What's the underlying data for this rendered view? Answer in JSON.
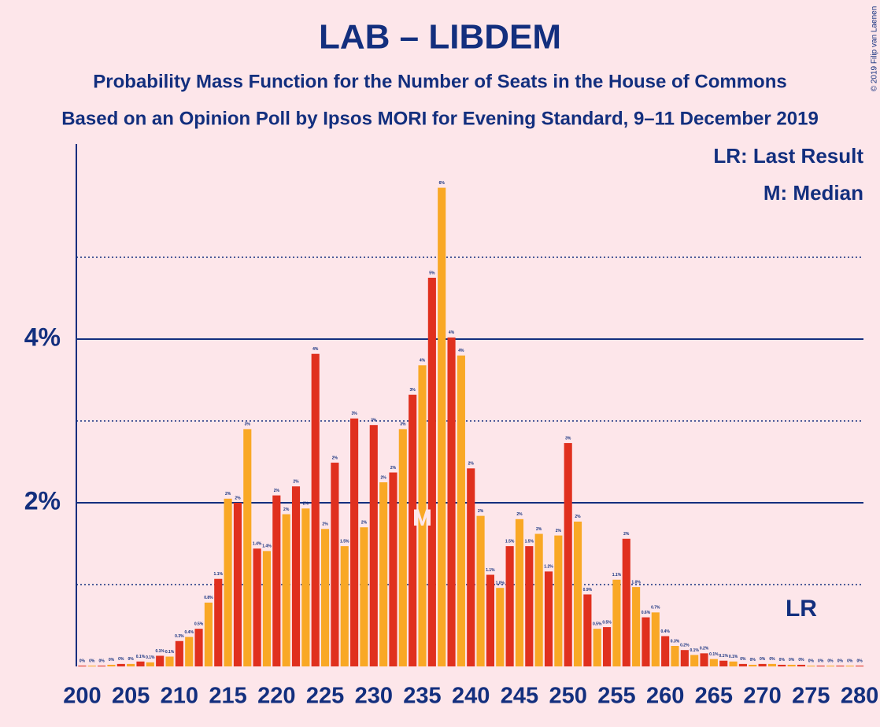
{
  "chart_data": {
    "type": "bar",
    "title": "LAB – LIBDEM",
    "subtitle": "Probability Mass Function for the Number of Seats in the House of Commons",
    "subtitle2": "Based on an Opinion Poll by Ipsos MORI for Evening Standard, 9–11 December 2019",
    "copyright": "© 2019 Filip van Laenen",
    "legend_lr": "LR: Last Result",
    "legend_m": "M: Median",
    "colors": [
      "#e0301e",
      "#f9a825"
    ],
    "x": [
      200,
      201,
      202,
      203,
      204,
      205,
      206,
      207,
      208,
      209,
      210,
      211,
      212,
      213,
      214,
      215,
      216,
      217,
      218,
      219,
      220,
      221,
      222,
      223,
      224,
      225,
      226,
      227,
      228,
      229,
      230,
      231,
      232,
      233,
      234,
      235,
      236,
      237,
      238,
      239,
      240,
      241,
      242,
      243,
      244,
      245,
      246,
      247,
      248,
      249,
      250,
      251,
      252,
      253,
      254,
      255,
      256,
      257,
      258,
      259,
      260,
      261,
      262,
      263,
      264,
      265,
      266,
      267,
      268,
      269,
      270,
      271,
      272,
      273,
      274,
      275,
      276,
      277,
      278,
      279,
      280
    ],
    "values": [
      0.01,
      0.01,
      0.01,
      0.02,
      0.03,
      0.03,
      0.06,
      0.05,
      0.13,
      0.12,
      0.31,
      0.36,
      0.46,
      0.78,
      1.07,
      2.05,
      2.0,
      2.9,
      1.44,
      1.41,
      2.09,
      1.86,
      2.2,
      1.93,
      3.82,
      1.68,
      2.49,
      1.47,
      3.03,
      1.7,
      2.95,
      2.25,
      2.37,
      2.9,
      3.32,
      3.68,
      4.75,
      5.85,
      4.02,
      3.8,
      2.42,
      1.84,
      1.12,
      0.96,
      1.47,
      1.8,
      1.47,
      1.62,
      1.16,
      1.6,
      2.73,
      1.77,
      0.88,
      0.46,
      0.48,
      1.06,
      1.56,
      0.97,
      0.6,
      0.66,
      0.37,
      0.25,
      0.2,
      0.14,
      0.16,
      0.09,
      0.07,
      0.06,
      0.03,
      0.02,
      0.03,
      0.03,
      0.02,
      0.02,
      0.02,
      0.01,
      0.01,
      0.01,
      0.01,
      0.01,
      0.01
    ],
    "value_labels": [
      "0%",
      "0%",
      "0%",
      "0%",
      "0%",
      "0%",
      "0.1%",
      "0.1%",
      "0.1%",
      "0.1%",
      "0.3%",
      "0.4%",
      "0.5%",
      "0.8%",
      "1.1%",
      "2%",
      "2%",
      "3%",
      "1.4%",
      "1.4%",
      "2%",
      "2%",
      "2%",
      "2%",
      "4%",
      "2%",
      "2%",
      "1.5%",
      "3%",
      "2%",
      "3%",
      "2%",
      "2%",
      "3%",
      "3%",
      "4%",
      "5%",
      "6%",
      "4%",
      "4%",
      "2%",
      "2%",
      "1.1%",
      "1.0%",
      "1.5%",
      "2%",
      "1.5%",
      "2%",
      "1.2%",
      "2%",
      "3%",
      "2%",
      "0.9%",
      "0.5%",
      "0.5%",
      "1.1%",
      "2%",
      "1.0%",
      "0.6%",
      "0.7%",
      "0.4%",
      "0.3%",
      "0.2%",
      "0.1%",
      "0.2%",
      "0.1%",
      "0.1%",
      "0.1%",
      "0%",
      "0%",
      "0%",
      "0%",
      "0%",
      "0%",
      "0%",
      "0%",
      "0%",
      "0%",
      "0%",
      "0%",
      "0%"
    ],
    "median": {
      "x": 235,
      "label": "M"
    },
    "last_result": {
      "x": 274,
      "label": "LR"
    },
    "xlim": [
      199.4,
      280.4
    ],
    "xticks": [
      200,
      205,
      210,
      215,
      220,
      225,
      230,
      235,
      240,
      245,
      250,
      255,
      260,
      265,
      270,
      275,
      280
    ],
    "ylim": [
      0,
      6.4
    ],
    "yticks": [
      {
        "value": 2,
        "label": "2%"
      },
      {
        "value": 4,
        "label": "4%"
      }
    ],
    "minor_yticks": [
      1,
      3,
      5
    ]
  }
}
